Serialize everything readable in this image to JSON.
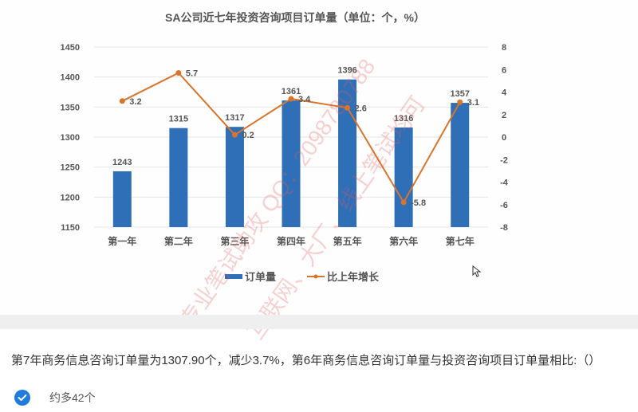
{
  "chart_data": {
    "type": "bar+line",
    "title": "SA公司近七年投资咨询项目订单量（单位：个，%）",
    "categories": [
      "第一年",
      "第二年",
      "第三年",
      "第四年",
      "第五年",
      "第六年",
      "第七年"
    ],
    "series": [
      {
        "name": "订单量",
        "type": "bar",
        "axis": "left",
        "color": "#2e6fb7",
        "values": [
          1243,
          1315,
          1317,
          1361,
          1396,
          1316,
          1357
        ]
      },
      {
        "name": "比上年增长",
        "type": "line",
        "axis": "right",
        "color": "#d9752b",
        "values": [
          3.2,
          5.7,
          0.2,
          3.4,
          2.6,
          -5.8,
          3.1
        ]
      }
    ],
    "left_axis": {
      "min": 1150,
      "max": 1450,
      "ticks": [
        1450,
        1400,
        1350,
        1300,
        1250,
        1200,
        1150
      ]
    },
    "right_axis": {
      "min": -8,
      "max": 8,
      "ticks": [
        8,
        6,
        4,
        2,
        0,
        -2,
        -4,
        -6,
        -8
      ]
    },
    "grid": true,
    "legend_position": "bottom"
  },
  "legend": {
    "bar_label": "订单量",
    "line_label": "比上年增长"
  },
  "question": {
    "text": "第7年商务信息咨询订单量为1307.90个，减少3.7%，第6年商务信息咨询订单量与投资咨询项目订单量相比:（）"
  },
  "options": [
    {
      "label": "约多42个",
      "selected": true
    }
  ],
  "watermarks": [
    "专业笔试助攻 QQ：2098780788",
    "互联网、大厂、线上笔试均可"
  ],
  "colors": {
    "bar": "#2e6fb7",
    "line": "#d9752b",
    "check": "#1e7be0"
  }
}
